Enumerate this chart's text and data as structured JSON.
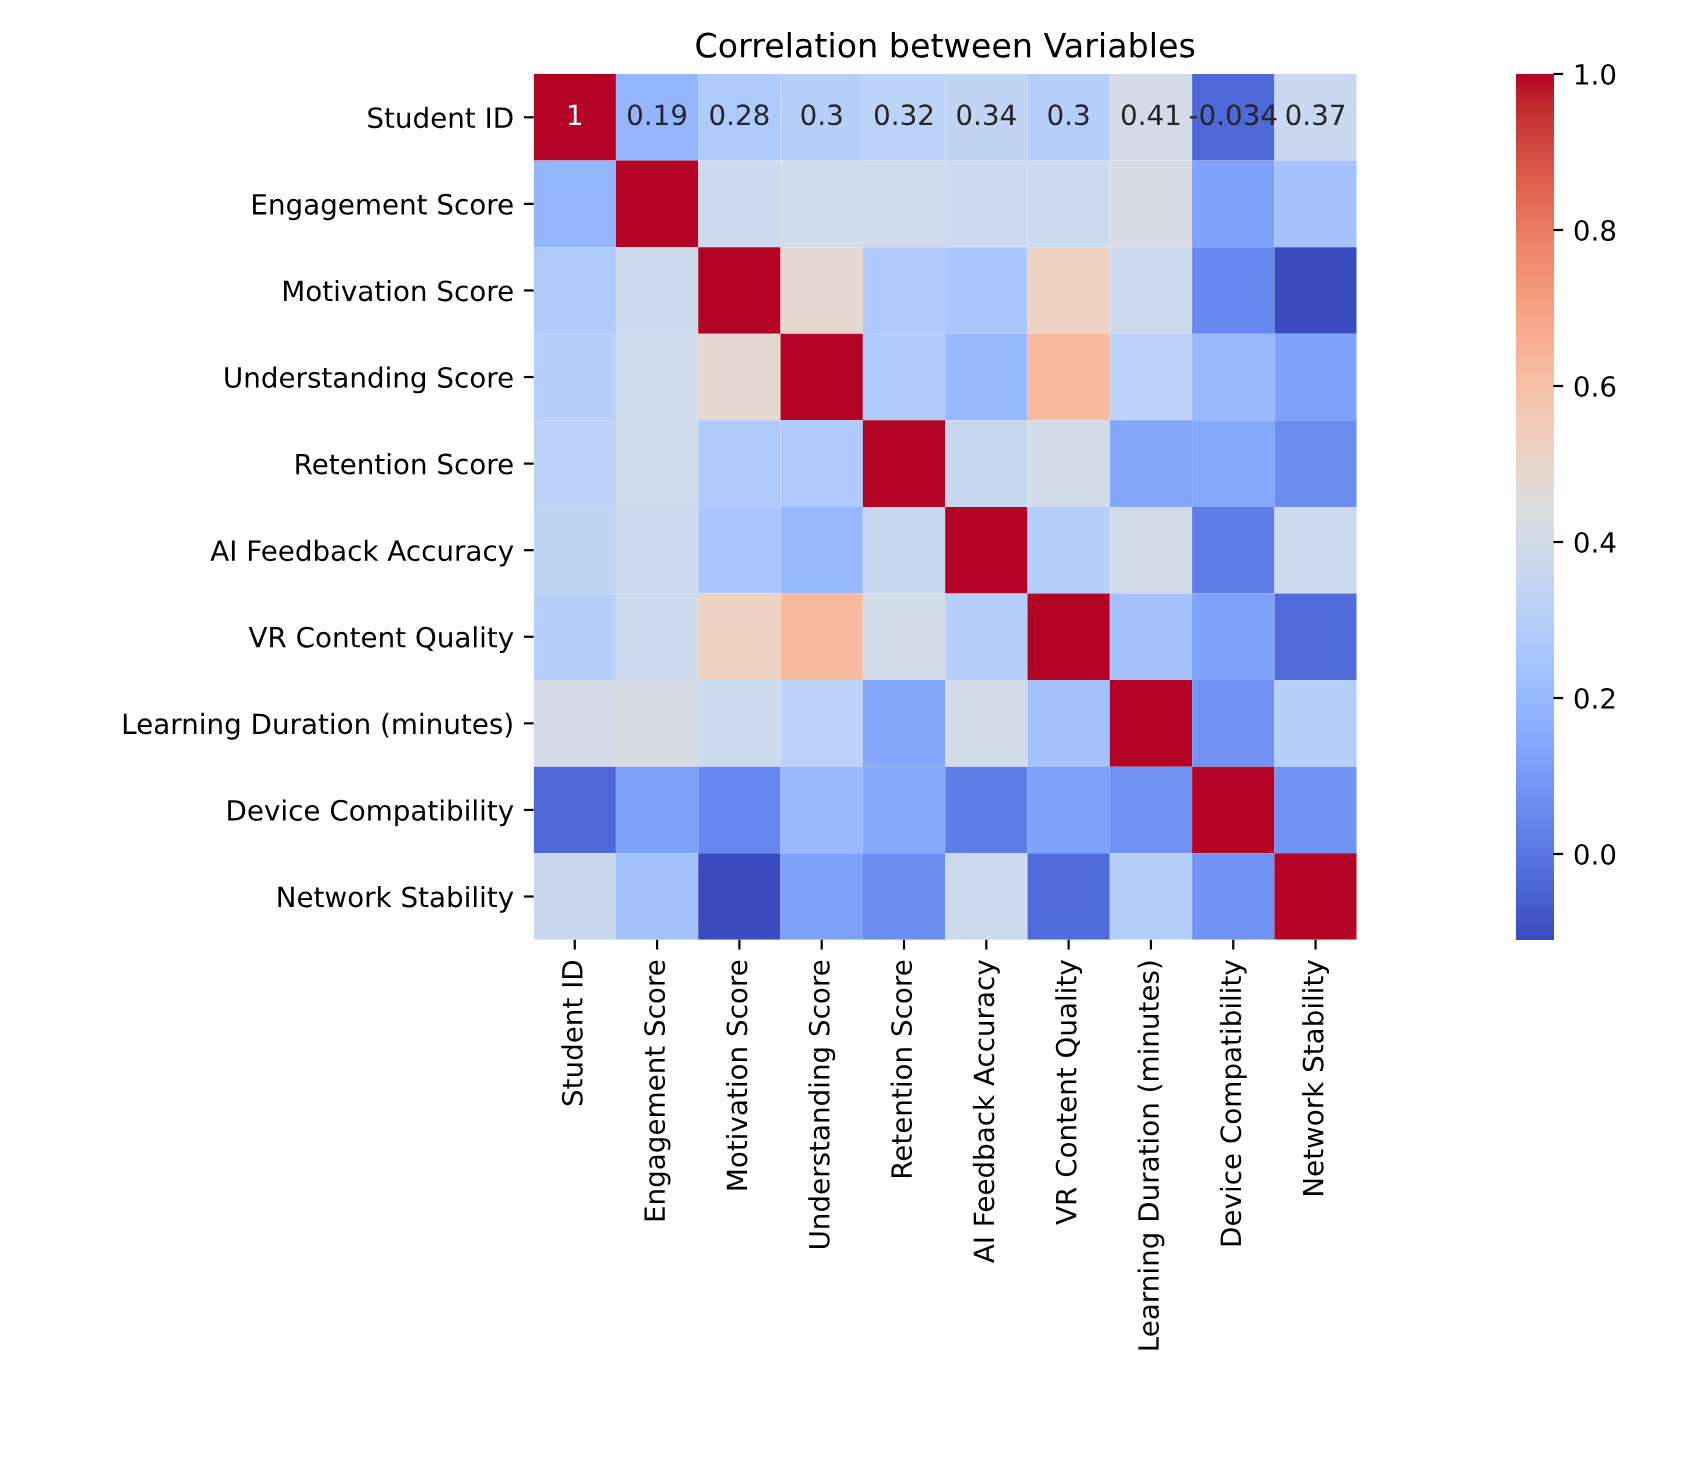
{
  "chart_data": {
    "type": "heatmap",
    "title": "Correlation between Variables",
    "categories": [
      "Student ID",
      "Engagement Score",
      "Motivation Score",
      "Understanding Score",
      "Retention Score",
      "AI Feedback Accuracy",
      "VR Content Quality",
      "Learning Duration (minutes)",
      "Device Compatibility",
      "Network Stability"
    ],
    "y_categories": [
      "Student ID",
      "Engagement Score",
      "Motivation Score",
      "Understanding Score",
      "Retention Score",
      "AI Feedback Accuracy",
      "VR Content Quality",
      "Learning Duration (minutes)",
      "Device Compatibility",
      "Network Stability"
    ],
    "cells": [
      [
        1,
        0.19,
        0.28,
        0.3,
        0.32,
        0.34,
        0.3,
        0.41,
        -0.034,
        0.37
      ],
      [
        0.19,
        1,
        0.38,
        0.39,
        0.39,
        0.38,
        0.38,
        0.42,
        0.12,
        0.24
      ],
      [
        0.28,
        0.38,
        1,
        0.48,
        0.28,
        0.26,
        0.52,
        0.38,
        0.05,
        -0.11
      ],
      [
        0.3,
        0.39,
        0.48,
        1,
        0.28,
        0.2,
        0.62,
        0.32,
        0.2,
        0.12
      ],
      [
        0.32,
        0.39,
        0.28,
        0.28,
        1,
        0.36,
        0.4,
        0.14,
        0.15,
        0.06
      ],
      [
        0.34,
        0.38,
        0.26,
        0.2,
        0.36,
        1,
        0.3,
        0.4,
        0.02,
        0.38
      ],
      [
        0.3,
        0.38,
        0.52,
        0.62,
        0.4,
        0.3,
        1,
        0.24,
        0.12,
        -0.03
      ],
      [
        0.41,
        0.42,
        0.38,
        0.32,
        0.14,
        0.4,
        0.24,
        1,
        0.08,
        0.3
      ],
      [
        -0.034,
        0.12,
        0.05,
        0.2,
        0.15,
        0.02,
        0.12,
        0.08,
        1,
        0.08
      ],
      [
        0.37,
        0.24,
        -0.11,
        0.12,
        0.06,
        0.38,
        -0.03,
        0.3,
        0.08,
        1
      ]
    ],
    "cell_labels": [
      [
        "1",
        "0.19",
        "0.28",
        "0.3",
        "0.32",
        "0.34",
        "0.3",
        "0.41",
        "-0.034",
        "0.37"
      ],
      [
        null,
        null,
        null,
        null,
        null,
        null,
        null,
        null,
        null,
        null
      ],
      [
        null,
        null,
        null,
        null,
        null,
        null,
        null,
        null,
        null,
        null
      ],
      [
        null,
        null,
        null,
        null,
        null,
        null,
        null,
        null,
        null,
        null
      ],
      [
        null,
        null,
        null,
        null,
        null,
        null,
        null,
        null,
        null,
        null
      ],
      [
        null,
        null,
        null,
        null,
        null,
        null,
        null,
        null,
        null,
        null
      ],
      [
        null,
        null,
        null,
        null,
        null,
        null,
        null,
        null,
        null,
        null
      ],
      [
        null,
        null,
        null,
        null,
        null,
        null,
        null,
        null,
        null,
        null
      ],
      [
        null,
        null,
        null,
        null,
        null,
        null,
        null,
        null,
        null,
        null
      ],
      [
        null,
        null,
        null,
        null,
        null,
        null,
        null,
        null,
        null,
        null
      ]
    ],
    "clim": [
      -0.11,
      1
    ],
    "cticks": [
      {
        "value": 0,
        "label": "0.0"
      },
      {
        "value": 0.2,
        "label": "0.2"
      },
      {
        "value": 0.4,
        "label": "0.4"
      },
      {
        "value": 0.6,
        "label": "0.6"
      },
      {
        "value": 0.8,
        "label": "0.8"
      },
      {
        "value": 1,
        "label": "1.0"
      }
    ]
  }
}
